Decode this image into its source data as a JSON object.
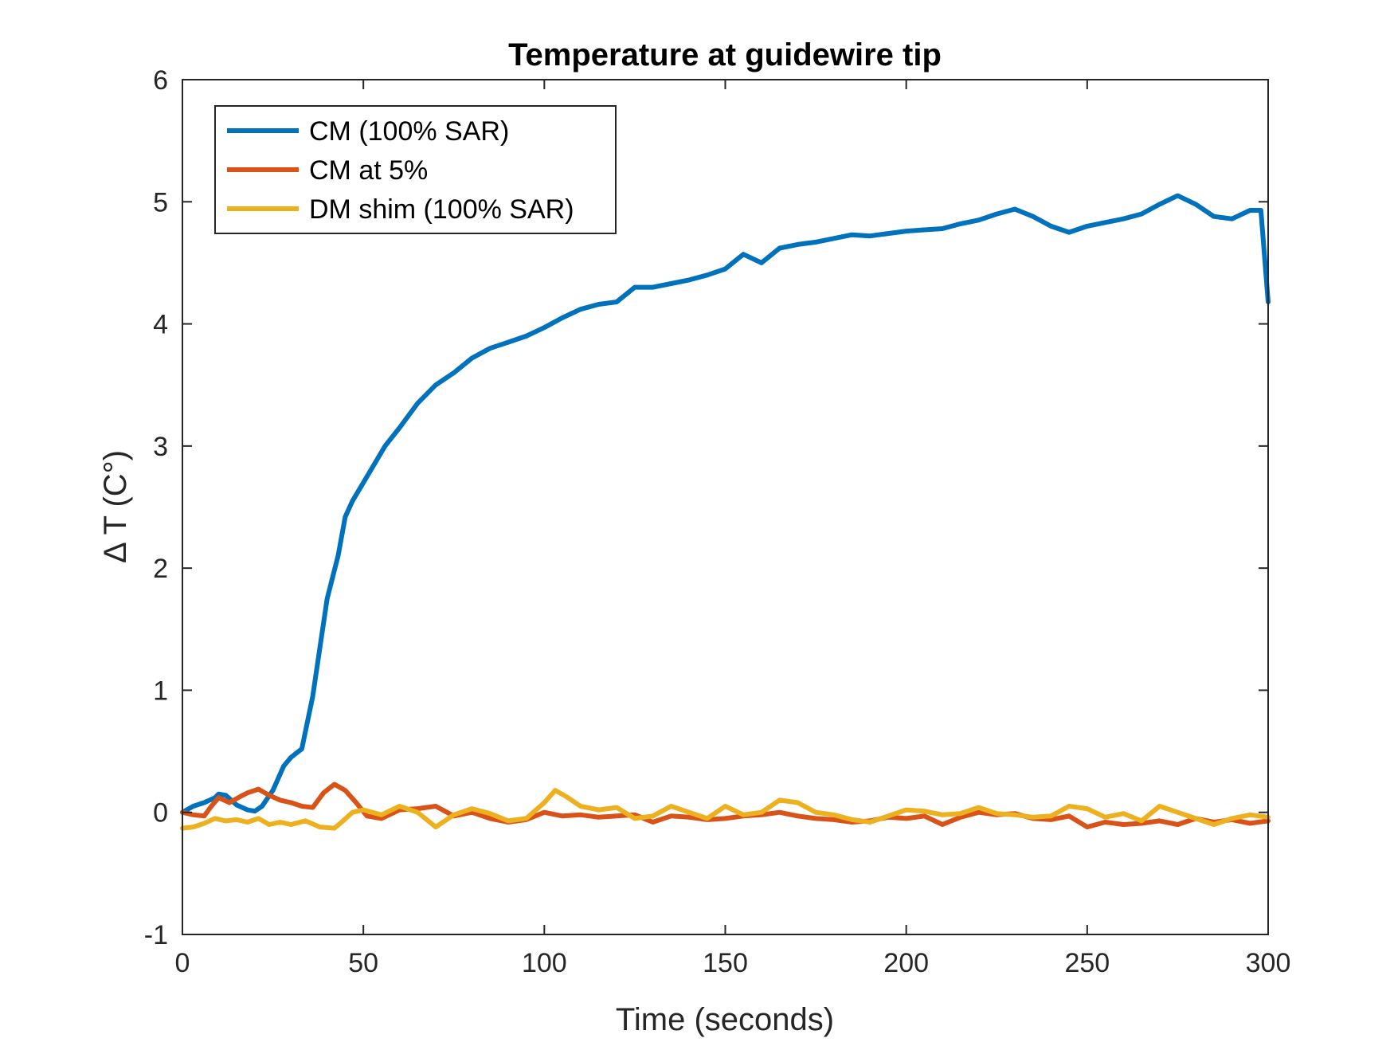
{
  "chart_data": {
    "type": "line",
    "title": "Temperature at guidewire tip",
    "xlabel": "Time (seconds)",
    "ylabel": "Δ T (C°)",
    "xlim": [
      0,
      300
    ],
    "ylim": [
      -1,
      6
    ],
    "xticks": [
      0,
      50,
      100,
      150,
      200,
      250,
      300
    ],
    "yticks": [
      -1,
      0,
      1,
      2,
      3,
      4,
      5,
      6
    ],
    "grid": false,
    "legend_position": "top-left",
    "series": [
      {
        "name": "CM (100% SAR)",
        "color": "#0072BD",
        "x": [
          0,
          3,
          6,
          9,
          10,
          12,
          15,
          18,
          20,
          22,
          25,
          28,
          30,
          33,
          36,
          38,
          40,
          43,
          45,
          47,
          50,
          53,
          56,
          60,
          65,
          70,
          75,
          80,
          85,
          90,
          95,
          100,
          105,
          110,
          115,
          120,
          125,
          130,
          135,
          140,
          145,
          150,
          155,
          160,
          165,
          170,
          175,
          180,
          185,
          190,
          195,
          200,
          205,
          210,
          215,
          220,
          225,
          230,
          235,
          240,
          245,
          250,
          255,
          260,
          265,
          270,
          275,
          280,
          285,
          290,
          295,
          298,
          300
        ],
        "y": [
          0.0,
          0.05,
          0.08,
          0.12,
          0.15,
          0.14,
          0.06,
          0.02,
          0.01,
          0.05,
          0.18,
          0.38,
          0.45,
          0.52,
          0.95,
          1.35,
          1.75,
          2.1,
          2.42,
          2.55,
          2.7,
          2.85,
          3.0,
          3.15,
          3.35,
          3.5,
          3.6,
          3.72,
          3.8,
          3.85,
          3.9,
          3.97,
          4.05,
          4.12,
          4.16,
          4.18,
          4.3,
          4.3,
          4.33,
          4.36,
          4.4,
          4.45,
          4.57,
          4.5,
          4.62,
          4.65,
          4.67,
          4.7,
          4.73,
          4.72,
          4.74,
          4.76,
          4.77,
          4.78,
          4.82,
          4.85,
          4.9,
          4.94,
          4.88,
          4.8,
          4.75,
          4.8,
          4.83,
          4.86,
          4.9,
          4.98,
          5.05,
          4.98,
          4.88,
          4.86,
          4.93,
          4.93,
          4.18
        ]
      },
      {
        "name": "CM at 5%",
        "color": "#D95319",
        "x": [
          0,
          3,
          6,
          8,
          10,
          13,
          16,
          18,
          21,
          24,
          27,
          30,
          33,
          36,
          39,
          42,
          45,
          48,
          51,
          55,
          60,
          65,
          70,
          75,
          80,
          85,
          90,
          95,
          100,
          105,
          110,
          115,
          120,
          125,
          130,
          135,
          140,
          145,
          150,
          155,
          160,
          165,
          170,
          175,
          180,
          185,
          190,
          195,
          200,
          205,
          210,
          215,
          220,
          225,
          230,
          235,
          240,
          245,
          250,
          255,
          260,
          265,
          270,
          275,
          280,
          285,
          290,
          295,
          300
        ],
        "y": [
          0.0,
          -0.02,
          -0.03,
          0.05,
          0.12,
          0.08,
          0.13,
          0.16,
          0.19,
          0.14,
          0.1,
          0.08,
          0.05,
          0.04,
          0.16,
          0.23,
          0.18,
          0.08,
          -0.03,
          -0.05,
          0.02,
          0.03,
          0.05,
          -0.03,
          0.0,
          -0.05,
          -0.08,
          -0.06,
          0.0,
          -0.03,
          -0.02,
          -0.04,
          -0.03,
          -0.02,
          -0.08,
          -0.03,
          -0.04,
          -0.06,
          -0.05,
          -0.03,
          -0.02,
          0.0,
          -0.03,
          -0.05,
          -0.06,
          -0.08,
          -0.07,
          -0.04,
          -0.05,
          -0.03,
          -0.1,
          -0.04,
          0.0,
          -0.02,
          -0.01,
          -0.05,
          -0.06,
          -0.03,
          -0.12,
          -0.08,
          -0.1,
          -0.09,
          -0.07,
          -0.1,
          -0.05,
          -0.08,
          -0.06,
          -0.09,
          -0.07
        ]
      },
      {
        "name": "DM shim (100% SAR)",
        "color": "#EDB120",
        "x": [
          0,
          3,
          6,
          9,
          12,
          15,
          18,
          21,
          24,
          27,
          30,
          34,
          38,
          42,
          44,
          47,
          50,
          55,
          60,
          65,
          70,
          75,
          80,
          85,
          90,
          95,
          100,
          103,
          106,
          110,
          115,
          120,
          125,
          130,
          135,
          140,
          145,
          150,
          155,
          160,
          165,
          170,
          175,
          180,
          185,
          190,
          195,
          200,
          205,
          210,
          215,
          220,
          225,
          230,
          235,
          240,
          245,
          250,
          255,
          260,
          265,
          270,
          275,
          280,
          285,
          290,
          295,
          300
        ],
        "y": [
          -0.13,
          -0.12,
          -0.09,
          -0.05,
          -0.07,
          -0.06,
          -0.08,
          -0.05,
          -0.1,
          -0.08,
          -0.1,
          -0.07,
          -0.12,
          -0.13,
          -0.08,
          0.0,
          0.02,
          -0.02,
          0.05,
          0.0,
          -0.12,
          -0.02,
          0.03,
          -0.01,
          -0.07,
          -0.05,
          0.08,
          0.18,
          0.13,
          0.05,
          0.02,
          0.04,
          -0.05,
          -0.03,
          0.05,
          0.0,
          -0.05,
          0.05,
          -0.02,
          0.0,
          0.1,
          0.08,
          0.0,
          -0.02,
          -0.06,
          -0.08,
          -0.03,
          0.02,
          0.01,
          -0.02,
          -0.01,
          0.04,
          -0.01,
          -0.02,
          -0.04,
          -0.03,
          0.05,
          0.03,
          -0.04,
          -0.01,
          -0.07,
          0.05,
          0.0,
          -0.05,
          -0.1,
          -0.05,
          -0.02,
          -0.04
        ]
      }
    ]
  }
}
